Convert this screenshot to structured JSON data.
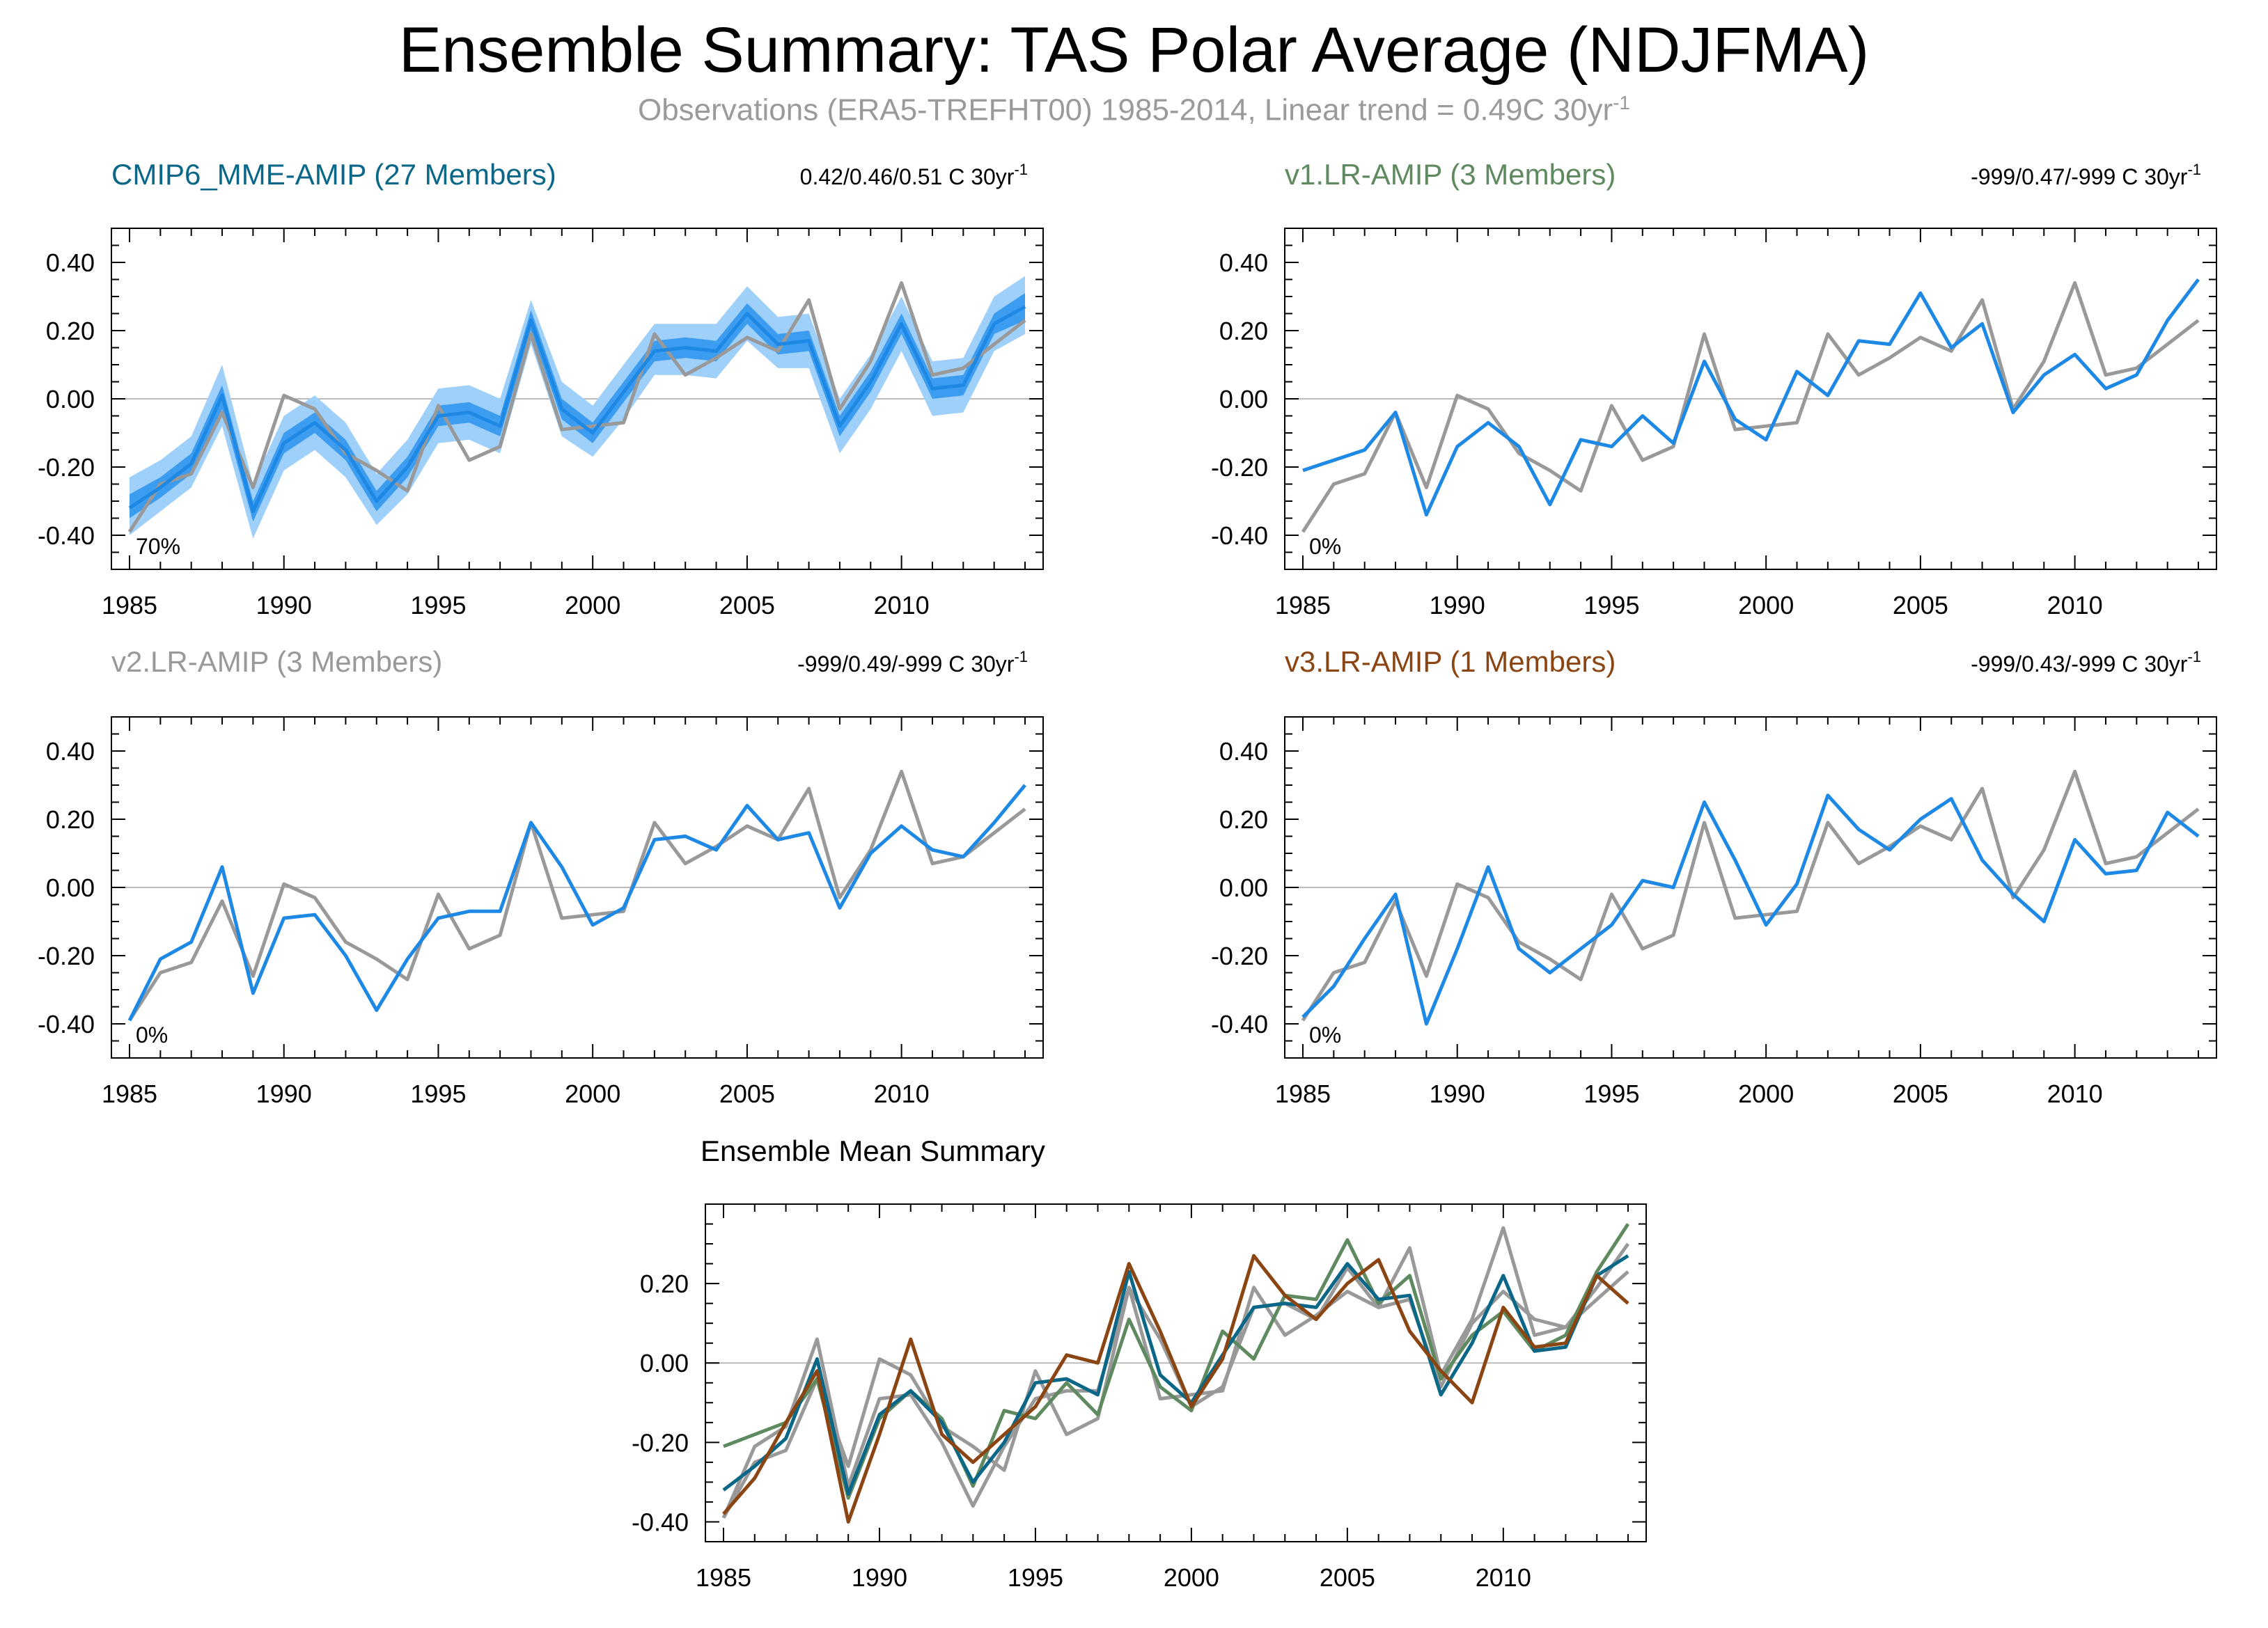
{
  "title": "Ensemble Summary: TAS Polar Average (NDJFMA)",
  "subtitle": "Observations (ERA5-TREFHT00) 1985-2014, Linear trend = 0.49C 30yr",
  "subtitle_sup": "-1",
  "colors": {
    "obs": "#999999",
    "model": "#1e88e5",
    "band_outer": "#9fd0fa",
    "band_inner": "#3c9cf0",
    "cmip6": "#0b6788",
    "v1": "#5f8a5f",
    "v2": "#999999",
    "v3": "#8b4513",
    "zero_line": "#bbbbbb"
  },
  "chart_data": [
    {
      "type": "line",
      "title": "CMIP6_MME-AMIP (27 Members)",
      "title_color": "#0b6788",
      "trend_text": "0.42/0.46/0.51 C 30yr",
      "trend_sup": "-1",
      "pct_label": "70%",
      "ylim": [
        -0.5,
        0.5
      ],
      "xlim": [
        1985,
        2014
      ],
      "yticks": [
        "0.40",
        "0.20",
        "0.00",
        "-0.20",
        "-0.40"
      ],
      "xticks": [
        "1985",
        "1990",
        "1995",
        "2000",
        "2005",
        "2010"
      ],
      "x": [
        1985,
        1986,
        1987,
        1988,
        1989,
        1990,
        1991,
        1992,
        1993,
        1994,
        1995,
        1996,
        1997,
        1998,
        1999,
        2000,
        2001,
        2002,
        2003,
        2004,
        2005,
        2006,
        2007,
        2008,
        2009,
        2010,
        2011,
        2012,
        2013,
        2014
      ],
      "obs": [
        -0.39,
        -0.25,
        -0.22,
        -0.04,
        -0.26,
        0.01,
        -0.03,
        -0.16,
        -0.21,
        -0.27,
        -0.02,
        -0.18,
        -0.14,
        0.19,
        -0.09,
        -0.08,
        -0.07,
        0.19,
        0.07,
        0.12,
        0.18,
        0.14,
        0.29,
        -0.03,
        0.11,
        0.34,
        0.07,
        0.09,
        0.16,
        0.23
      ],
      "mean": [
        -0.32,
        -0.26,
        -0.19,
        0.01,
        -0.33,
        -0.13,
        -0.07,
        -0.15,
        -0.3,
        -0.2,
        -0.05,
        -0.04,
        -0.08,
        0.23,
        -0.03,
        -0.1,
        0.02,
        0.14,
        0.15,
        0.14,
        0.25,
        0.16,
        0.17,
        -0.08,
        0.05,
        0.22,
        0.03,
        0.04,
        0.22,
        0.27
      ],
      "band_inner": {
        "lower": [
          -0.35,
          -0.29,
          -0.22,
          -0.03,
          -0.36,
          -0.16,
          -0.1,
          -0.18,
          -0.33,
          -0.23,
          -0.08,
          -0.07,
          -0.11,
          0.2,
          -0.06,
          -0.13,
          -0.01,
          0.11,
          0.12,
          0.11,
          0.22,
          0.13,
          0.14,
          -0.11,
          0.02,
          0.19,
          0.0,
          0.01,
          0.19,
          0.23
        ],
        "upper": [
          -0.28,
          -0.23,
          -0.16,
          0.04,
          -0.3,
          -0.1,
          -0.04,
          -0.12,
          -0.27,
          -0.17,
          -0.02,
          -0.01,
          -0.05,
          0.26,
          0.0,
          -0.07,
          0.05,
          0.17,
          0.18,
          0.17,
          0.28,
          0.19,
          0.2,
          -0.05,
          0.08,
          0.25,
          0.06,
          0.07,
          0.25,
          0.31
        ]
      },
      "band_outer": {
        "lower": [
          -0.4,
          -0.33,
          -0.26,
          -0.08,
          -0.41,
          -0.21,
          -0.15,
          -0.23,
          -0.37,
          -0.28,
          -0.13,
          -0.12,
          -0.16,
          0.16,
          -0.11,
          -0.17,
          -0.06,
          0.07,
          0.07,
          0.06,
          0.17,
          0.09,
          0.09,
          -0.16,
          -0.03,
          0.14,
          -0.05,
          -0.04,
          0.14,
          0.19
        ],
        "upper": [
          -0.23,
          -0.18,
          -0.11,
          0.1,
          -0.25,
          -0.05,
          0.01,
          -0.07,
          -0.22,
          -0.12,
          0.03,
          0.04,
          0.0,
          0.29,
          0.05,
          -0.02,
          0.1,
          0.22,
          0.22,
          0.22,
          0.33,
          0.24,
          0.25,
          0.0,
          0.13,
          0.3,
          0.11,
          0.12,
          0.3,
          0.36
        ]
      }
    },
    {
      "type": "line",
      "title": "v1.LR-AMIP (3 Members)",
      "title_color": "#5f8a5f",
      "trend_text": "-999/0.47/-999 C 30yr",
      "trend_sup": "-1",
      "pct_label": "0%",
      "ylim": [
        -0.5,
        0.5
      ],
      "xlim": [
        1985,
        2014
      ],
      "yticks": [
        "0.40",
        "0.20",
        "0.00",
        "-0.20",
        "-0.40"
      ],
      "xticks": [
        "1985",
        "1990",
        "1995",
        "2000",
        "2005",
        "2010"
      ],
      "x": [
        1985,
        1986,
        1987,
        1988,
        1989,
        1990,
        1991,
        1992,
        1993,
        1994,
        1995,
        1996,
        1997,
        1998,
        1999,
        2000,
        2001,
        2002,
        2003,
        2004,
        2005,
        2006,
        2007,
        2008,
        2009,
        2010,
        2011,
        2012,
        2013,
        2014
      ],
      "obs": [
        -0.39,
        -0.25,
        -0.22,
        -0.04,
        -0.26,
        0.01,
        -0.03,
        -0.16,
        -0.21,
        -0.27,
        -0.02,
        -0.18,
        -0.14,
        0.19,
        -0.09,
        -0.08,
        -0.07,
        0.19,
        0.07,
        0.12,
        0.18,
        0.14,
        0.29,
        -0.03,
        0.11,
        0.34,
        0.07,
        0.09,
        0.16,
        0.23
      ],
      "mean": [
        -0.21,
        -0.18,
        -0.15,
        -0.04,
        -0.34,
        -0.14,
        -0.07,
        -0.14,
        -0.31,
        -0.12,
        -0.14,
        -0.05,
        -0.13,
        0.11,
        -0.06,
        -0.12,
        0.08,
        0.01,
        0.17,
        0.16,
        0.31,
        0.15,
        0.22,
        -0.04,
        0.07,
        0.13,
        0.03,
        0.07,
        0.23,
        0.35
      ]
    },
    {
      "type": "line",
      "title": "v2.LR-AMIP (3 Members)",
      "title_color": "#999999",
      "trend_text": "-999/0.49/-999 C 30yr",
      "trend_sup": "-1",
      "pct_label": "0%",
      "ylim": [
        -0.5,
        0.5
      ],
      "xlim": [
        1985,
        2014
      ],
      "yticks": [
        "0.40",
        "0.20",
        "0.00",
        "-0.20",
        "-0.40"
      ],
      "xticks": [
        "1985",
        "1990",
        "1995",
        "2000",
        "2005",
        "2010"
      ],
      "x": [
        1985,
        1986,
        1987,
        1988,
        1989,
        1990,
        1991,
        1992,
        1993,
        1994,
        1995,
        1996,
        1997,
        1998,
        1999,
        2000,
        2001,
        2002,
        2003,
        2004,
        2005,
        2006,
        2007,
        2008,
        2009,
        2010,
        2011,
        2012,
        2013,
        2014
      ],
      "obs": [
        -0.39,
        -0.25,
        -0.22,
        -0.04,
        -0.26,
        0.01,
        -0.03,
        -0.16,
        -0.21,
        -0.27,
        -0.02,
        -0.18,
        -0.14,
        0.19,
        -0.09,
        -0.08,
        -0.07,
        0.19,
        0.07,
        0.12,
        0.18,
        0.14,
        0.29,
        -0.03,
        0.11,
        0.34,
        0.07,
        0.09,
        0.16,
        0.23
      ],
      "mean": [
        -0.39,
        -0.21,
        -0.16,
        0.06,
        -0.31,
        -0.09,
        -0.08,
        -0.2,
        -0.36,
        -0.21,
        -0.09,
        -0.07,
        -0.07,
        0.19,
        0.06,
        -0.11,
        -0.06,
        0.14,
        0.15,
        0.11,
        0.24,
        0.14,
        0.16,
        -0.06,
        0.1,
        0.18,
        0.11,
        0.09,
        0.19,
        0.3
      ]
    },
    {
      "type": "line",
      "title": "v3.LR-AMIP (1 Members)",
      "title_color": "#8b4513",
      "trend_text": "-999/0.43/-999 C 30yr",
      "trend_sup": "-1",
      "pct_label": "0%",
      "ylim": [
        -0.5,
        0.5
      ],
      "xlim": [
        1985,
        2014
      ],
      "yticks": [
        "0.40",
        "0.20",
        "0.00",
        "-0.20",
        "-0.40"
      ],
      "xticks": [
        "1985",
        "1990",
        "1995",
        "2000",
        "2005",
        "2010"
      ],
      "x": [
        1985,
        1986,
        1987,
        1988,
        1989,
        1990,
        1991,
        1992,
        1993,
        1994,
        1995,
        1996,
        1997,
        1998,
        1999,
        2000,
        2001,
        2002,
        2003,
        2004,
        2005,
        2006,
        2007,
        2008,
        2009,
        2010,
        2011,
        2012,
        2013,
        2014
      ],
      "obs": [
        -0.39,
        -0.25,
        -0.22,
        -0.04,
        -0.26,
        0.01,
        -0.03,
        -0.16,
        -0.21,
        -0.27,
        -0.02,
        -0.18,
        -0.14,
        0.19,
        -0.09,
        -0.08,
        -0.07,
        0.19,
        0.07,
        0.12,
        0.18,
        0.14,
        0.29,
        -0.03,
        0.11,
        0.34,
        0.07,
        0.09,
        0.16,
        0.23
      ],
      "mean": [
        -0.38,
        -0.29,
        -0.15,
        -0.02,
        -0.4,
        -0.18,
        0.06,
        -0.18,
        -0.25,
        -0.18,
        -0.11,
        0.02,
        0.0,
        0.25,
        0.08,
        -0.11,
        0.01,
        0.27,
        0.17,
        0.11,
        0.2,
        0.26,
        0.08,
        -0.02,
        -0.1,
        0.14,
        0.04,
        0.05,
        0.22,
        0.15
      ]
    },
    {
      "type": "line",
      "title": "Ensemble Mean Summary",
      "ylim": [
        -0.45,
        0.4
      ],
      "xlim": [
        1985,
        2014
      ],
      "yticks": [
        "0.20",
        "0.00",
        "-0.20",
        "-0.40"
      ],
      "xticks": [
        "1985",
        "1990",
        "1995",
        "2000",
        "2005",
        "2010"
      ],
      "x": [
        1985,
        1986,
        1987,
        1988,
        1989,
        1990,
        1991,
        1992,
        1993,
        1994,
        1995,
        1996,
        1997,
        1998,
        1999,
        2000,
        2001,
        2002,
        2003,
        2004,
        2005,
        2006,
        2007,
        2008,
        2009,
        2010,
        2011,
        2012,
        2013,
        2014
      ],
      "series": [
        {
          "color": "#999999",
          "values": [
            -0.39,
            -0.25,
            -0.22,
            -0.04,
            -0.26,
            0.01,
            -0.03,
            -0.16,
            -0.21,
            -0.27,
            -0.02,
            -0.18,
            -0.14,
            0.19,
            -0.09,
            -0.08,
            -0.07,
            0.19,
            0.07,
            0.12,
            0.18,
            0.14,
            0.29,
            -0.03,
            0.11,
            0.34,
            0.07,
            0.09,
            0.16,
            0.23
          ]
        },
        {
          "color": "#999999",
          "values": [
            -0.39,
            -0.21,
            -0.16,
            0.06,
            -0.31,
            -0.09,
            -0.08,
            -0.2,
            -0.36,
            -0.21,
            -0.09,
            -0.07,
            -0.07,
            0.19,
            0.06,
            -0.11,
            -0.06,
            0.14,
            0.15,
            0.11,
            0.24,
            0.14,
            0.16,
            -0.06,
            0.1,
            0.18,
            0.11,
            0.09,
            0.19,
            0.3
          ]
        },
        {
          "color": "#5f8a5f",
          "values": [
            -0.21,
            -0.18,
            -0.15,
            -0.04,
            -0.34,
            -0.14,
            -0.07,
            -0.14,
            -0.31,
            -0.12,
            -0.14,
            -0.05,
            -0.13,
            0.11,
            -0.06,
            -0.12,
            0.08,
            0.01,
            0.17,
            0.16,
            0.31,
            0.15,
            0.22,
            -0.04,
            0.07,
            0.13,
            0.03,
            0.07,
            0.23,
            0.35
          ]
        },
        {
          "color": "#0b6788",
          "values": [
            -0.32,
            -0.26,
            -0.19,
            0.01,
            -0.33,
            -0.13,
            -0.07,
            -0.15,
            -0.3,
            -0.2,
            -0.05,
            -0.04,
            -0.08,
            0.23,
            -0.03,
            -0.1,
            0.02,
            0.14,
            0.15,
            0.14,
            0.25,
            0.16,
            0.17,
            -0.08,
            0.05,
            0.22,
            0.03,
            0.04,
            0.22,
            0.27
          ]
        },
        {
          "color": "#8b4513",
          "values": [
            -0.38,
            -0.29,
            -0.15,
            -0.02,
            -0.4,
            -0.18,
            0.06,
            -0.18,
            -0.25,
            -0.18,
            -0.11,
            0.02,
            0.0,
            0.25,
            0.08,
            -0.11,
            0.01,
            0.27,
            0.17,
            0.11,
            0.2,
            0.26,
            0.08,
            -0.02,
            -0.1,
            0.14,
            0.04,
            0.05,
            0.22,
            0.15
          ]
        }
      ]
    }
  ]
}
